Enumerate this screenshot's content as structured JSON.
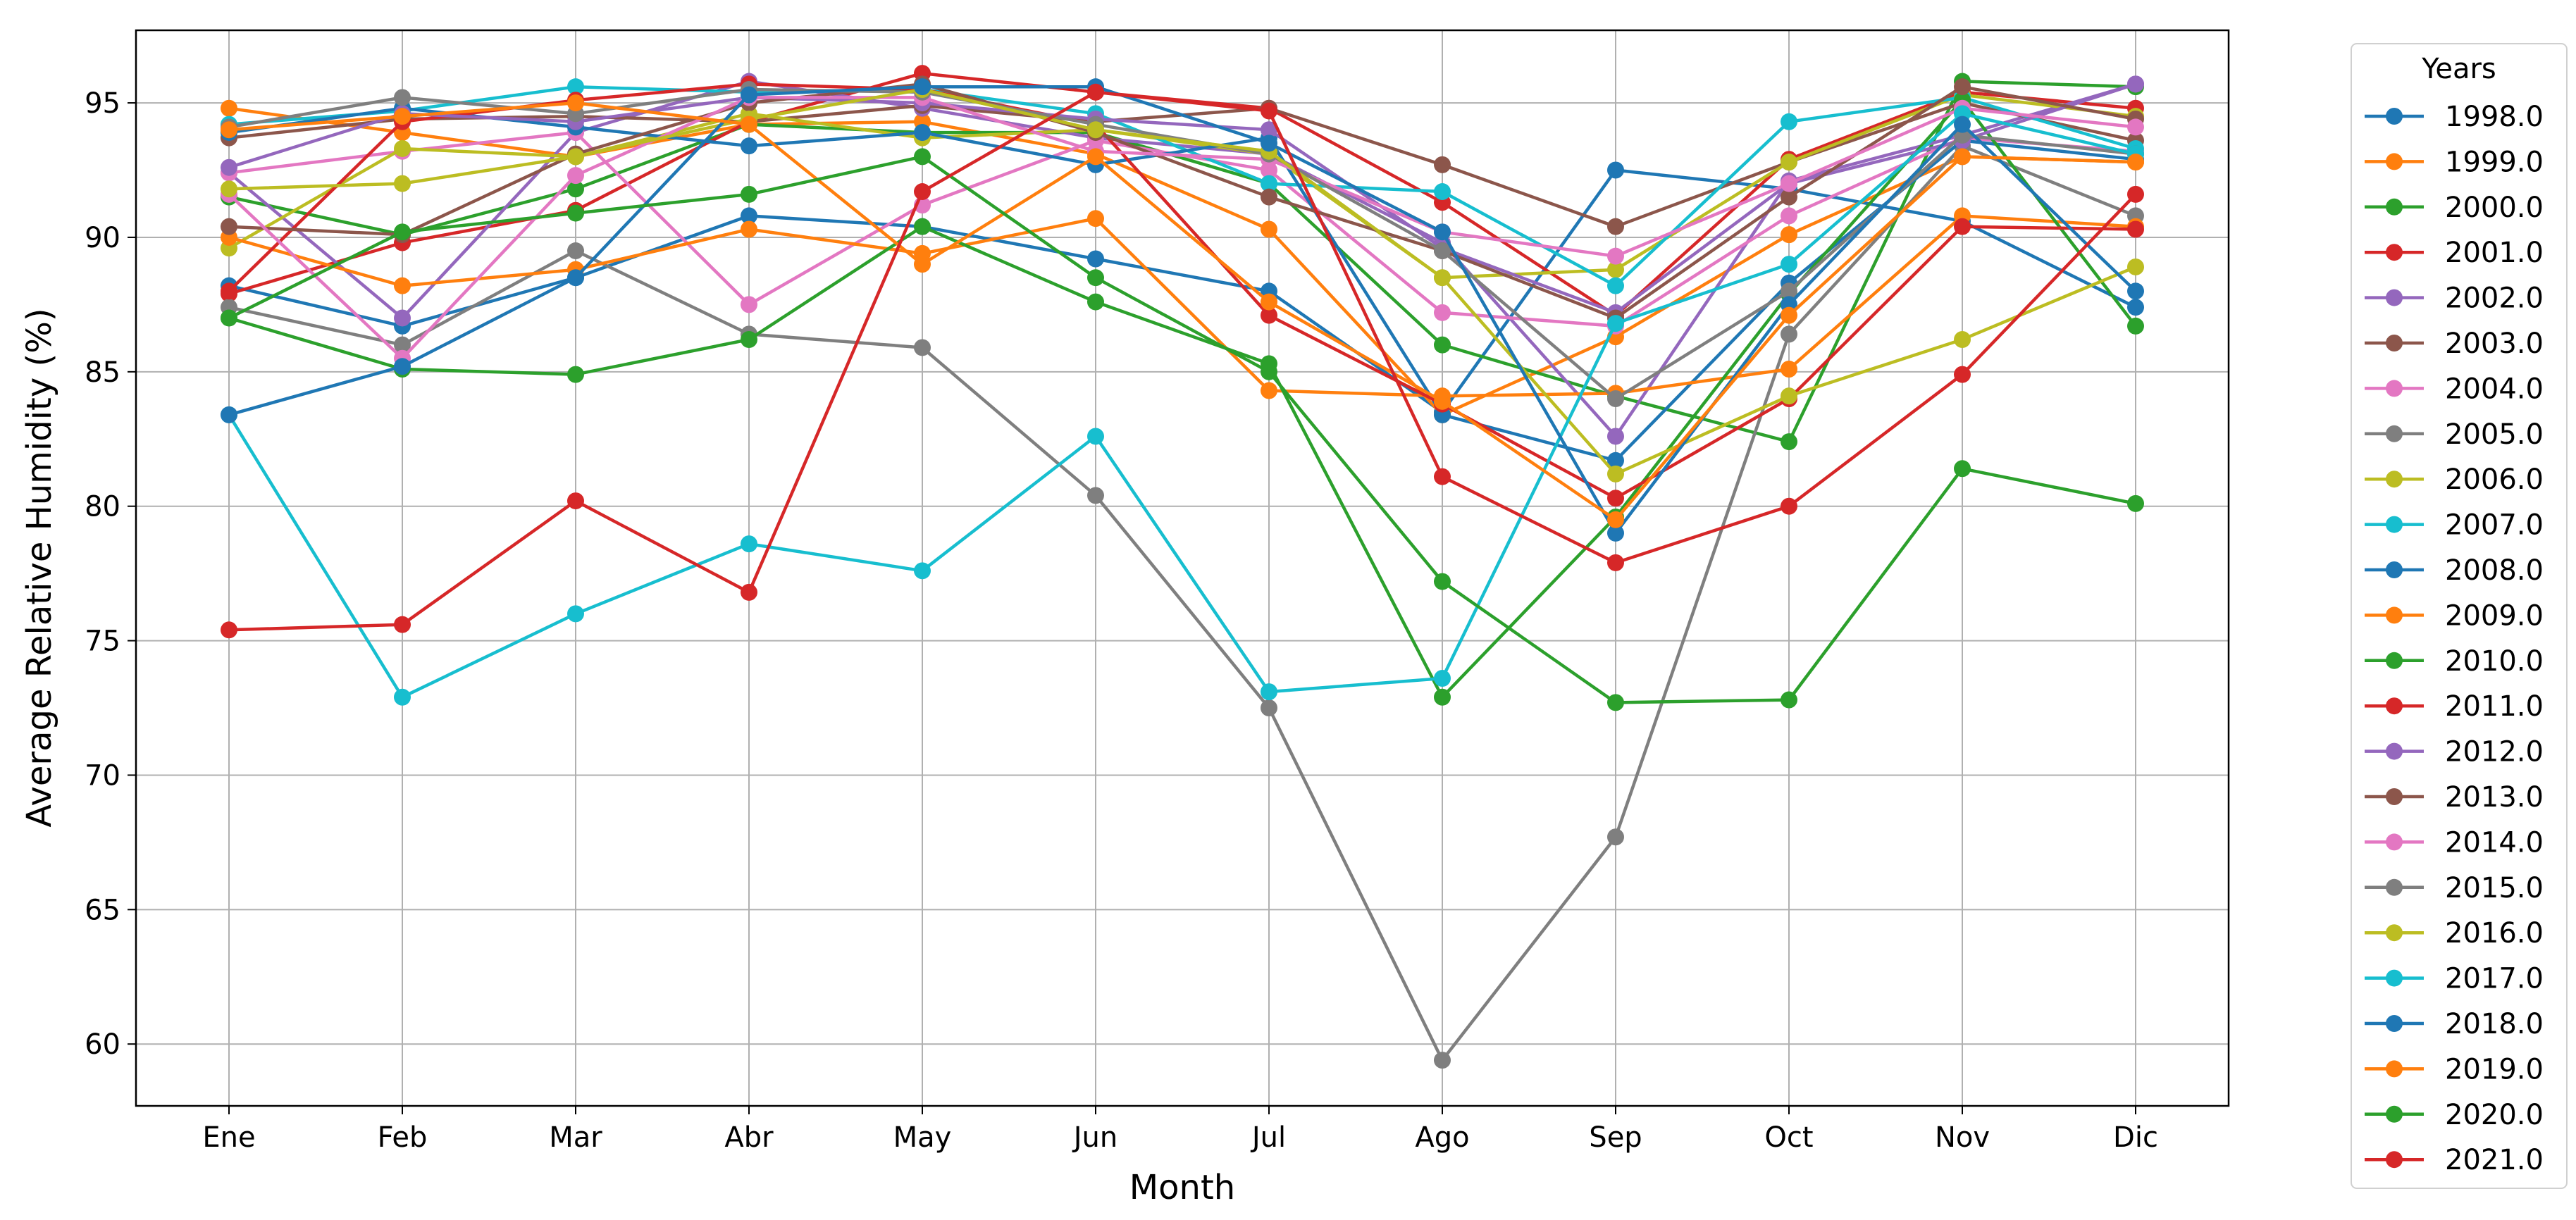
{
  "chart_data": {
    "type": "line",
    "title": "",
    "xlabel": "Month",
    "ylabel": "Average Relative Humidity (%)",
    "categories": [
      "Ene",
      "Feb",
      "Mar",
      "Abr",
      "May",
      "Jun",
      "Jul",
      "Ago",
      "Sep",
      "Oct",
      "Nov",
      "Dic"
    ],
    "ylim": [
      57.7,
      97.7
    ],
    "yticks": [
      60,
      65,
      70,
      75,
      80,
      85,
      90,
      95
    ],
    "grid": true,
    "legend": {
      "title": "Years",
      "placement": "outside-right"
    },
    "series": [
      {
        "name": "1998.0",
        "color": "#1f77b4",
        "values": [
          88.2,
          86.7,
          88.5,
          90.8,
          90.4,
          89.2,
          88.0,
          83.5,
          92.5,
          91.8,
          90.6,
          87.4
        ]
      },
      {
        "name": "1999.0",
        "color": "#ff7f0e",
        "values": [
          94.8,
          93.9,
          93.0,
          94.2,
          94.3,
          93.1,
          90.3,
          83.4,
          86.3,
          90.1,
          93.0,
          92.8
        ]
      },
      {
        "name": "2000.0",
        "color": "#2ca02c",
        "values": [
          91.5,
          90.1,
          91.8,
          94.2,
          93.9,
          93.9,
          92.0,
          86.0,
          84.1,
          82.4,
          95.8,
          95.6
        ]
      },
      {
        "name": "2001.0",
        "color": "#d62728",
        "values": [
          87.9,
          89.8,
          91.0,
          94.3,
          96.1,
          95.4,
          94.8,
          91.3,
          87.1,
          92.9,
          95.4,
          94.8
        ]
      },
      {
        "name": "2002.0",
        "color": "#9467bd",
        "values": [
          92.4,
          87.0,
          93.9,
          95.8,
          94.8,
          93.7,
          93.1,
          89.8,
          82.6,
          92.1,
          93.8,
          95.7
        ]
      },
      {
        "name": "2003.0",
        "color": "#8c564b",
        "values": [
          93.7,
          94.4,
          94.5,
          94.3,
          94.9,
          94.3,
          94.8,
          92.7,
          90.4,
          92.8,
          95.0,
          93.6
        ]
      },
      {
        "name": "2004.0",
        "color": "#e377c2",
        "values": [
          92.4,
          93.2,
          93.9,
          87.5,
          91.2,
          93.6,
          92.5,
          87.2,
          86.7,
          90.8,
          93.7,
          93.2
        ]
      },
      {
        "name": "2005.0",
        "color": "#7f7f7f",
        "values": [
          87.4,
          86.0,
          89.5,
          86.4,
          85.9,
          80.4,
          72.5,
          59.4,
          67.7,
          86.4,
          93.4,
          90.8
        ]
      },
      {
        "name": "2006.0",
        "color": "#bcbd22",
        "values": [
          89.6,
          93.3,
          93.0,
          94.6,
          93.7,
          94.0,
          93.1,
          88.5,
          88.8,
          92.8,
          95.3,
          94.5
        ]
      },
      {
        "name": "2007.0",
        "color": "#17becf",
        "values": [
          94.2,
          94.7,
          95.6,
          95.4,
          95.5,
          94.6,
          92.0,
          91.7,
          88.2,
          94.3,
          95.2,
          93.3
        ]
      },
      {
        "name": "2008.0",
        "color": "#1f77b4",
        "values": [
          93.9,
          94.8,
          94.1,
          93.4,
          93.9,
          92.7,
          93.7,
          83.4,
          81.7,
          88.3,
          93.6,
          92.9
        ]
      },
      {
        "name": "2009.0",
        "color": "#ff7f0e",
        "values": [
          90.0,
          88.2,
          88.8,
          90.3,
          89.4,
          90.7,
          84.3,
          84.1,
          84.2,
          85.1,
          90.8,
          90.4
        ]
      },
      {
        "name": "2010.0",
        "color": "#2ca02c",
        "values": [
          87.0,
          85.1,
          84.9,
          86.2,
          90.4,
          87.6,
          85.3,
          72.9,
          79.6,
          87.9,
          95.1,
          86.7
        ]
      },
      {
        "name": "2011.0",
        "color": "#d62728",
        "values": [
          88.0,
          94.3,
          95.1,
          95.7,
          95.5,
          94.2,
          87.1,
          83.8,
          80.3,
          84.0,
          90.4,
          90.3
        ]
      },
      {
        "name": "2012.0",
        "color": "#9467bd",
        "values": [
          92.6,
          94.6,
          94.3,
          95.2,
          95.0,
          94.4,
          94.0,
          89.6,
          87.2,
          92.0,
          93.6,
          95.7
        ]
      },
      {
        "name": "2013.0",
        "color": "#8c564b",
        "values": [
          90.4,
          90.1,
          93.1,
          95.0,
          95.7,
          93.9,
          91.5,
          89.5,
          87.0,
          91.5,
          95.6,
          94.4
        ]
      },
      {
        "name": "2014.0",
        "color": "#e377c2",
        "values": [
          91.6,
          85.5,
          92.3,
          95.2,
          95.2,
          93.2,
          92.9,
          90.2,
          89.3,
          92.0,
          94.8,
          94.1
        ]
      },
      {
        "name": "2015.0",
        "color": "#7f7f7f",
        "values": [
          94.1,
          95.2,
          94.6,
          95.5,
          95.4,
          94.2,
          93.1,
          89.5,
          84.0,
          88.0,
          93.8,
          93.1
        ]
      },
      {
        "name": "2016.0",
        "color": "#bcbd22",
        "values": [
          91.8,
          92.0,
          93.0,
          94.4,
          95.5,
          94.0,
          93.2,
          88.5,
          81.2,
          84.1,
          86.2,
          88.9
        ]
      },
      {
        "name": "2017.0",
        "color": "#17becf",
        "values": [
          83.4,
          72.9,
          76.0,
          78.6,
          77.6,
          82.6,
          73.1,
          73.6,
          86.8,
          89.0,
          94.6,
          93.1
        ]
      },
      {
        "name": "2018.0",
        "color": "#1f77b4",
        "values": [
          83.4,
          85.2,
          88.5,
          95.3,
          95.6,
          95.6,
          93.5,
          90.2,
          79.0,
          87.5,
          94.2,
          88.0
        ]
      },
      {
        "name": "2019.0",
        "color": "#ff7f0e",
        "values": [
          94.0,
          94.5,
          95.0,
          94.2,
          89.0,
          93.0,
          87.6,
          83.9,
          79.5,
          87.1,
          93.0,
          92.8
        ]
      },
      {
        "name": "2020.0",
        "color": "#2ca02c",
        "values": [
          87.0,
          90.2,
          90.9,
          91.6,
          93.0,
          88.5,
          85.0,
          77.2,
          72.7,
          72.8,
          81.4,
          80.1
        ]
      },
      {
        "name": "2021.0",
        "color": "#d62728",
        "values": [
          75.4,
          75.6,
          80.2,
          76.8,
          91.7,
          95.4,
          94.7,
          81.1,
          77.9,
          80.0,
          84.9,
          91.6
        ]
      }
    ]
  }
}
